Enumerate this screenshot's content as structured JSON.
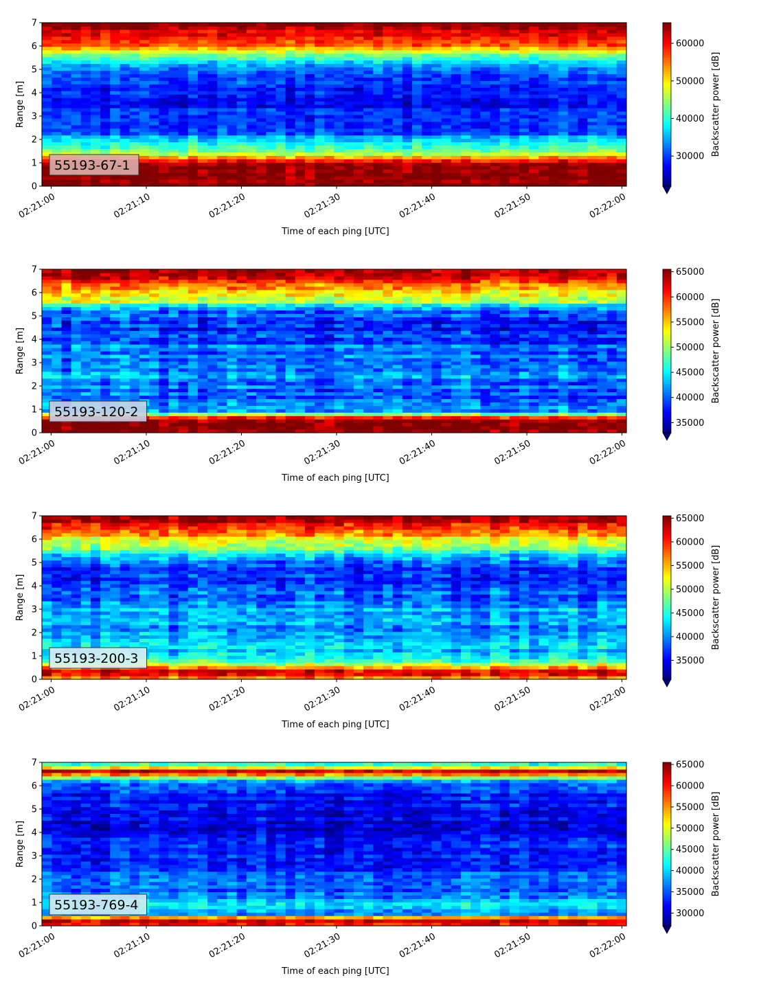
{
  "figure": {
    "cmap": "jet",
    "x_tick_labels": [
      "02:21:00",
      "02:21:10",
      "02:21:20",
      "02:21:30",
      "02:21:40",
      "02:21:50",
      "02:22:00"
    ],
    "y_tick_labels": [
      "0",
      "1",
      "2",
      "3",
      "4",
      "5",
      "6",
      "7"
    ]
  },
  "chart_data": [
    {
      "type": "heatmap",
      "label": "55193-67-1",
      "xlabel": "Time of each ping [UTC]",
      "ylabel": "Range [m]",
      "colorbar_label": "Backscatter power [dB]",
      "x_range": [
        "02:21:00",
        "02:22:00"
      ],
      "ylim": [
        0,
        7
      ],
      "color_range": [
        22000,
        65500
      ],
      "colorbar_ticks": [
        30000,
        40000,
        50000,
        60000
      ],
      "colorbar_extend": "min",
      "label_box_color": "#dcafab",
      "profile_range_m": [
        0.2,
        0.6,
        1.0,
        1.3,
        1.6,
        1.9,
        2.3,
        3.0,
        3.5,
        4.2,
        4.8,
        5.3,
        5.7,
        6.1,
        6.5,
        6.9
      ],
      "profile_power": [
        65000,
        65000,
        64000,
        50000,
        42000,
        40000,
        30000,
        29000,
        28000,
        29000,
        32000,
        37000,
        45000,
        57000,
        60000,
        65000
      ]
    },
    {
      "type": "heatmap",
      "label": "55193-120-2",
      "xlabel": "Time of each ping [UTC]",
      "ylabel": "Range [m]",
      "colorbar_label": "Backscatter power [dB]",
      "x_range": [
        "02:21:00",
        "02:22:00"
      ],
      "ylim": [
        0,
        7
      ],
      "color_range": [
        33000,
        65500
      ],
      "colorbar_ticks": [
        35000,
        40000,
        45000,
        50000,
        55000,
        60000,
        65000
      ],
      "colorbar_extend": "min",
      "label_box_color": "#c8d2e6",
      "profile_range_m": [
        0.2,
        0.6,
        0.9,
        1.5,
        2.5,
        3.5,
        4.5,
        5.2,
        5.6,
        6.0,
        6.4,
        6.8
      ],
      "profile_power": [
        65000,
        64000,
        42000,
        39000,
        42000,
        40500,
        38000,
        40000,
        50000,
        55000,
        58000,
        65000
      ]
    },
    {
      "type": "heatmap",
      "label": "55193-200-3",
      "xlabel": "Time of each ping [UTC]",
      "ylabel": "Range [m]",
      "colorbar_label": "Backscatter power [dB]",
      "x_range": [
        "02:21:00",
        "02:22:00"
      ],
      "ylim": [
        0,
        7
      ],
      "color_range": [
        31000,
        65500
      ],
      "colorbar_ticks": [
        35000,
        40000,
        45000,
        50000,
        55000,
        60000,
        65000
      ],
      "colorbar_extend": "min",
      "label_box_color": "#dceef2",
      "profile_range_m": [
        0.1,
        0.3,
        0.5,
        0.7,
        1.0,
        2.0,
        3.0,
        4.0,
        5.0,
        5.6,
        6.0,
        6.5,
        6.9
      ],
      "profile_power": [
        58000,
        65000,
        58000,
        47000,
        44000,
        40000,
        41000,
        37000,
        37500,
        48000,
        53000,
        60000,
        64000
      ]
    },
    {
      "type": "heatmap",
      "label": "55193-769-4",
      "xlabel": "Time of each ping [UTC]",
      "ylabel": "Range [m]",
      "colorbar_label": "Backscatter power [dB]",
      "x_range": [
        "02:21:00",
        "02:22:00"
      ],
      "ylim": [
        0,
        7
      ],
      "color_range": [
        27000,
        65500
      ],
      "colorbar_ticks": [
        30000,
        35000,
        40000,
        45000,
        50000,
        55000,
        60000,
        65000
      ],
      "colorbar_extend": "min",
      "label_box_color": "#d2eaf2",
      "profile_range_m": [
        0.1,
        0.3,
        0.5,
        0.8,
        1.5,
        2.5,
        3.5,
        4.5,
        5.3,
        5.8,
        6.2,
        6.6,
        6.9
      ],
      "profile_power": [
        60000,
        62000,
        38000,
        40000,
        36000,
        34000,
        32000,
        31000,
        31500,
        33000,
        37000,
        64000,
        42000
      ]
    }
  ]
}
